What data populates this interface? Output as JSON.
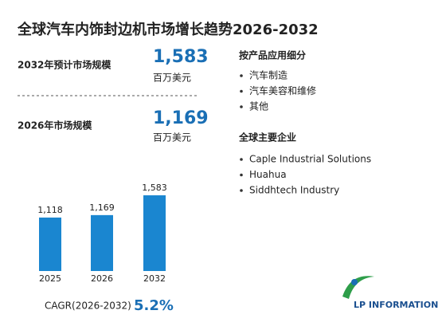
{
  "title": "全球汽车内饰封边机市场增长趋势2026-2032",
  "stats": [
    {
      "label": "2032年预计市场规模",
      "value": "1,583",
      "unit": "百万美元"
    },
    {
      "label": "2026年市场规模",
      "value": "1,169",
      "unit": "百万美元"
    }
  ],
  "segments": [
    {
      "heading": "按产品应用细分",
      "items": [
        "汽车制造",
        "汽车美容和维修",
        "其他"
      ]
    },
    {
      "heading": "全球主要企业",
      "items": [
        "Caple Industrial Solutions",
        "Huahua",
        "Siddhtech Industry"
      ]
    }
  ],
  "chart_data": {
    "type": "bar",
    "categories": [
      "2025",
      "2026",
      "2032"
    ],
    "values": [
      1118,
      1169,
      1583
    ],
    "value_labels": [
      "1,118",
      "1,169",
      "1,583"
    ],
    "color": "#1a86d0",
    "ylim": [
      0,
      2000
    ]
  },
  "cagr": {
    "label": "CAGR(2026-2032)",
    "value": "5.2%"
  },
  "logo": "LP INFORMATION"
}
